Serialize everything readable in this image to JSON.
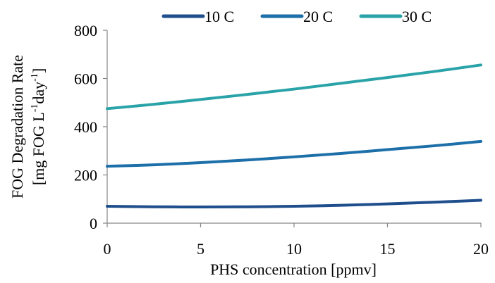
{
  "chart_data": {
    "type": "line",
    "title": "",
    "xlabel": "PHS concentration [ppmv]",
    "ylabel_line1": "FOG Degradation Rate",
    "ylabel_line2_prefix": "[mg FOG L",
    "ylabel_line2_sup1": "-1",
    "ylabel_line2_mid": "day",
    "ylabel_line2_sup2": "-1",
    "ylabel_line2_suffix": "]",
    "xlim": [
      0,
      20
    ],
    "ylim": [
      0,
      800
    ],
    "x_ticks": [
      0,
      5,
      10,
      15,
      20
    ],
    "y_ticks": [
      0,
      200,
      400,
      600,
      800
    ],
    "grid": false,
    "legend_position": "top",
    "x": [
      0,
      2.5,
      5,
      7.5,
      10,
      12.5,
      15,
      17.5,
      20
    ],
    "series": [
      {
        "name": "10 C",
        "color": "#1f4e8c",
        "values": [
          70,
          68,
          67,
          68,
          70,
          74,
          80,
          87,
          95
        ]
      },
      {
        "name": "20 C",
        "color": "#1c6fa8",
        "values": [
          236,
          242,
          251,
          262,
          275,
          289,
          305,
          321,
          339
        ]
      },
      {
        "name": "30 C",
        "color": "#2aa3a8",
        "values": [
          475,
          493,
          513,
          534,
          556,
          580,
          604,
          629,
          656
        ]
      }
    ]
  }
}
